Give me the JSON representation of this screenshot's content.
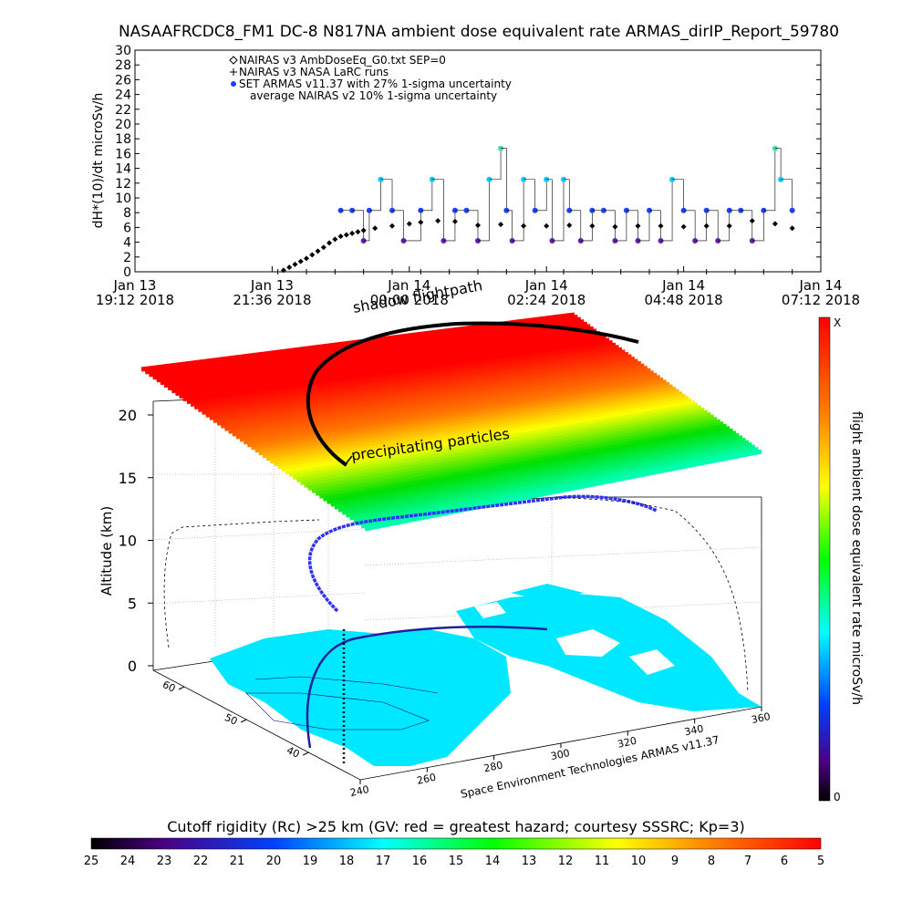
{
  "chart_data": [
    {
      "type": "scatter",
      "title": "NASAAFRCDC8_FM1 DC-8   N817NA ambient dose equivalent rate ARMAS_dirIP_Report_59780",
      "ylabel": "dH*(10)/dt microSv/h",
      "ylim": [
        0,
        30
      ],
      "y_ticks": [
        "0",
        "2",
        "4",
        "6",
        "8",
        "10",
        "12",
        "14",
        "16",
        "18",
        "20",
        "22",
        "24",
        "26",
        "28",
        "30"
      ],
      "x_ticks": [
        {
          "line1": "Jan 13",
          "line2": "19:12 2018"
        },
        {
          "line1": "Jan 13",
          "line2": "21:36 2018"
        },
        {
          "line1": "Jan 14",
          "line2": "00:00 2018"
        },
        {
          "line1": "Jan 14",
          "line2": "02:24 2018"
        },
        {
          "line1": "Jan 14",
          "line2": "04:48 2018"
        },
        {
          "line1": "Jan 14",
          "line2": "07:12 2018"
        }
      ],
      "xlim_hours": [
        0,
        12
      ],
      "legend": {
        "placement": "top-left",
        "entries": [
          "NAIRAS v3 AmbDoseEq_G0.txt SEP=0",
          "NAIRAS v3 NASA LaRC runs",
          "SET ARMAS v11.37 with 27% 1-sigma uncertainty",
          "average NAIRAS v2 10% 1-sigma uncertainty"
        ]
      },
      "series": [
        {
          "marker": "diamond",
          "x_hours": [
            2.6,
            2.7,
            2.8,
            2.9,
            3.0,
            3.1,
            3.2,
            3.3,
            3.4,
            3.5,
            3.6,
            3.7,
            3.8,
            3.9,
            4.0,
            4.2,
            4.5,
            4.8,
            5.0,
            5.3,
            5.6,
            6.0,
            6.4,
            6.8,
            7.2,
            7.6,
            8.0,
            8.4,
            8.8,
            9.2,
            9.6,
            10.0,
            10.4,
            10.8,
            11.2,
            11.5
          ],
          "y": [
            0.2,
            0.6,
            1.0,
            1.4,
            1.8,
            2.3,
            2.8,
            3.3,
            3.9,
            4.4,
            4.8,
            5.0,
            5.2,
            5.4,
            5.6,
            5.9,
            6.2,
            6.5,
            6.7,
            6.9,
            6.8,
            6.3,
            6.4,
            6.2,
            6.2,
            6.3,
            6.2,
            6.1,
            6.2,
            6.2,
            6.1,
            6.2,
            6.2,
            6.9,
            6.5,
            5.9
          ]
        },
        {
          "marker": "plus",
          "x_hours": [
            2.5,
            3.0,
            3.5,
            4.0,
            4.5,
            5.0,
            5.5,
            6.0,
            6.5,
            7.0,
            7.5,
            8.0,
            8.5,
            9.0,
            9.5,
            10.0,
            10.5,
            11.0,
            11.5
          ],
          "y": [
            0,
            0,
            0,
            0,
            0,
            0,
            0,
            0,
            0,
            0,
            0,
            0,
            0,
            0,
            0,
            0,
            0,
            0,
            0
          ]
        },
        {
          "marker": "dot",
          "color_scale": true,
          "x_hours": [
            3.6,
            3.8,
            4.0,
            4.1,
            4.3,
            4.5,
            4.7,
            5.0,
            5.2,
            5.4,
            5.6,
            5.8,
            6.0,
            6.2,
            6.4,
            6.5,
            6.6,
            6.8,
            7.0,
            7.2,
            7.3,
            7.5,
            7.6,
            7.8,
            8.0,
            8.2,
            8.4,
            8.6,
            8.8,
            9.0,
            9.2,
            9.4,
            9.6,
            9.8,
            10.0,
            10.2,
            10.4,
            10.6,
            10.8,
            11.0,
            11.2,
            11.3,
            11.5
          ],
          "y": [
            8.3,
            8.3,
            4.2,
            8.3,
            12.5,
            8.3,
            4.2,
            8.3,
            12.5,
            4.2,
            8.3,
            8.3,
            4.2,
            12.5,
            16.7,
            8.3,
            4.2,
            12.5,
            8.3,
            12.5,
            4.2,
            12.5,
            8.3,
            4.2,
            8.3,
            8.3,
            4.2,
            8.3,
            4.2,
            8.3,
            4.2,
            12.5,
            8.3,
            4.2,
            8.3,
            4.2,
            8.3,
            8.3,
            4.2,
            8.3,
            16.7,
            12.5,
            8.3
          ]
        }
      ]
    },
    {
      "type": "scatter",
      "subtitle": "shadow flightpath",
      "zlabel": "Altitude (km)",
      "z_ticks": [
        "0",
        "5",
        "10",
        "15",
        "20"
      ],
      "zlim": [
        0,
        22
      ],
      "x_ticks": [
        "240",
        "260",
        "280",
        "300",
        "320",
        "340",
        "360"
      ],
      "y_ticks": [
        "40",
        "50",
        "60"
      ],
      "annotation": "precipitating particles",
      "credit": "Space Environment Technologies ARMAS v11.37",
      "colorbar": {
        "label": "flight ambient dose equivalent rate microSv/h",
        "top_label": "X",
        "bottom_label": "0"
      }
    },
    {
      "type": "heatmap",
      "title": "Cutoff rigidity (Rc) >25 km (GV: red = greatest hazard; courtesy SSSRC; Kp=3)",
      "colorbar_ticks": [
        "25",
        "24",
        "23",
        "22",
        "21",
        "20",
        "19",
        "18",
        "17",
        "16",
        "15",
        "14",
        "13",
        "12",
        "11",
        "10",
        "9",
        "8",
        "7",
        "6",
        "5"
      ]
    }
  ]
}
